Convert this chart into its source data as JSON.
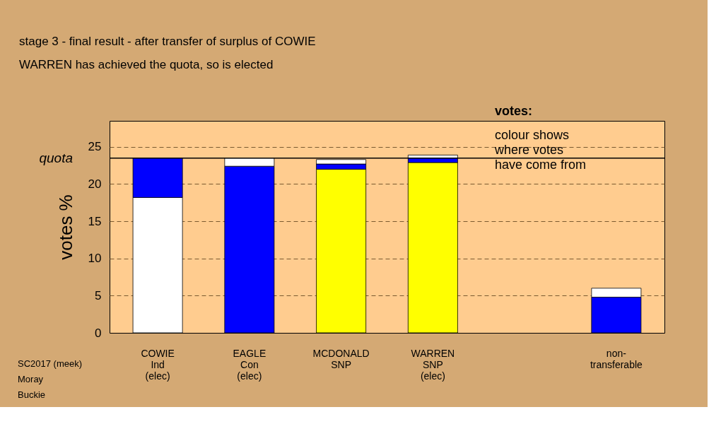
{
  "chart_data": {
    "type": "bar",
    "stacked": true,
    "title": "stage 3 - final result - after transfer of surplus of COWIE",
    "subtitle": "WARREN has achieved the quota, so is elected",
    "ylabel": "votes %",
    "categories": [
      "COWIE\nInd\n(elec)",
      "EAGLE\nCon\n(elec)",
      "MCDONALD\nSNP",
      "WARREN\nSNP\n(elec)",
      null,
      "non-\ntransferable"
    ],
    "series": [
      {
        "color": "#ffff00",
        "values": [
          null,
          null,
          22.0,
          22.9,
          null,
          null
        ]
      },
      {
        "color": "#ffffff",
        "values": [
          18.2,
          null,
          null,
          null,
          null,
          null
        ]
      },
      {
        "color": "#0000ff",
        "values": [
          5.3,
          22.4,
          0.7,
          0.6,
          null,
          4.8
        ]
      },
      {
        "color": "#ffffff",
        "values": [
          null,
          1.1,
          0.6,
          0.4,
          null,
          1.2
        ]
      }
    ],
    "ylim": [
      0,
      28.5
    ],
    "yticks": [
      0,
      5,
      10,
      15,
      20,
      25
    ],
    "grid": "y",
    "ref_lines": [
      {
        "axis": "y",
        "value": 23.5,
        "label": "quota",
        "color": "#000000",
        "line_style": "solid"
      }
    ],
    "annotations": [
      "votes:",
      "colour shows\nwhere votes\nhave come from",
      "SC2017 (meek)\nMoray\nBuckie"
    ]
  }
}
